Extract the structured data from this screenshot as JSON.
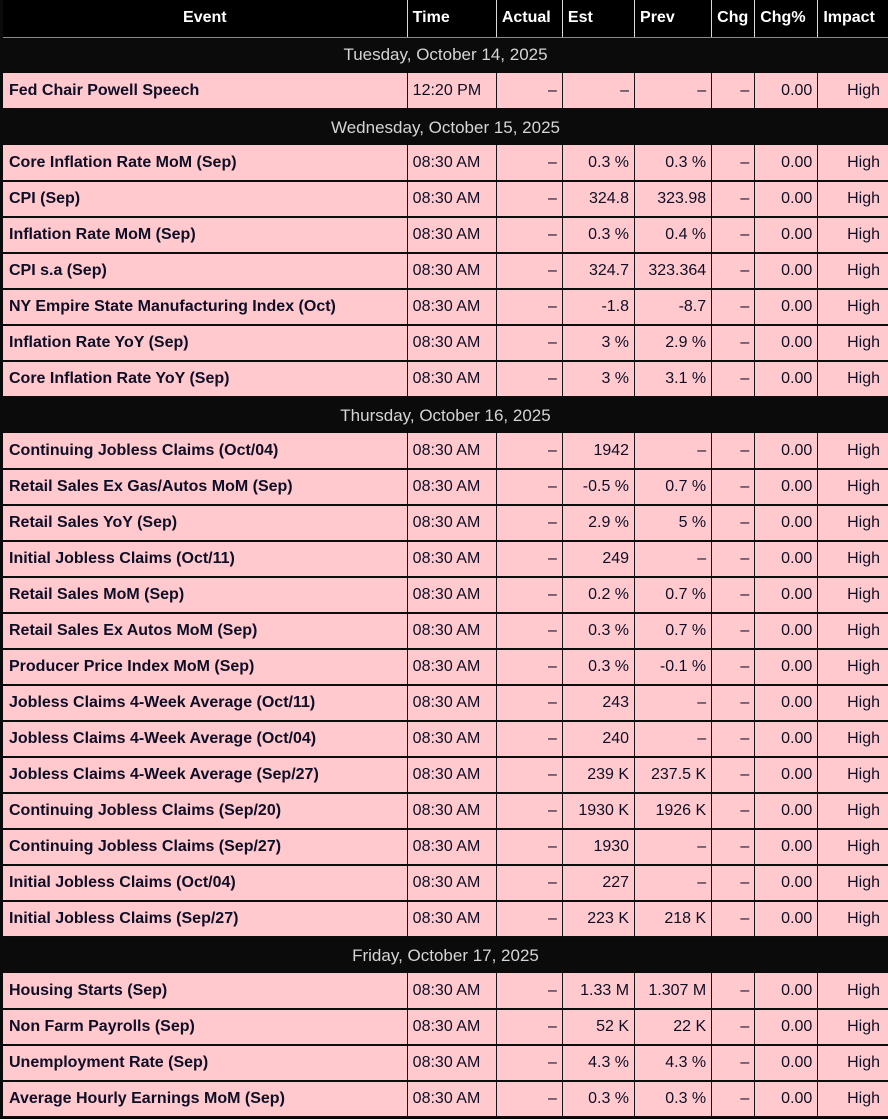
{
  "colors": {
    "row_bg": "#ffc9ce",
    "header_bg": "#000000",
    "section_bg": "#0b0b0b",
    "header_text": "#ffffff",
    "section_text": "#d5d5d5",
    "row_text": "#0e0e26"
  },
  "header": {
    "columns": [
      {
        "key": "event",
        "label": "Event"
      },
      {
        "key": "time",
        "label": "Time"
      },
      {
        "key": "actual",
        "label": "Actual"
      },
      {
        "key": "est",
        "label": "Est"
      },
      {
        "key": "prev",
        "label": "Prev"
      },
      {
        "key": "chg",
        "label": "Chg"
      },
      {
        "key": "chg_pct",
        "label": "Chg%"
      },
      {
        "key": "impact",
        "label": "Impact"
      }
    ]
  },
  "calendar": {
    "sections": [
      {
        "date": "Tuesday, October 14, 2025",
        "rows": [
          {
            "event": "Fed Chair Powell Speech",
            "time": "12:20 PM",
            "actual": "–",
            "est": "–",
            "prev": "–",
            "chg": "–",
            "chg_pct": "0.00",
            "impact": "High"
          }
        ]
      },
      {
        "date": "Wednesday, October 15, 2025",
        "rows": [
          {
            "event": "Core Inflation Rate MoM (Sep)",
            "time": "08:30 AM",
            "actual": "–",
            "est": "0.3 %",
            "prev": "0.3 %",
            "chg": "–",
            "chg_pct": "0.00",
            "impact": "High"
          },
          {
            "event": "CPI (Sep)",
            "time": "08:30 AM",
            "actual": "–",
            "est": "324.8",
            "prev": "323.98",
            "chg": "–",
            "chg_pct": "0.00",
            "impact": "High"
          },
          {
            "event": "Inflation Rate MoM (Sep)",
            "time": "08:30 AM",
            "actual": "–",
            "est": "0.3 %",
            "prev": "0.4 %",
            "chg": "–",
            "chg_pct": "0.00",
            "impact": "High"
          },
          {
            "event": "CPI s.a (Sep)",
            "time": "08:30 AM",
            "actual": "–",
            "est": "324.7",
            "prev": "323.364",
            "chg": "–",
            "chg_pct": "0.00",
            "impact": "High"
          },
          {
            "event": "NY Empire State Manufacturing Index (Oct)",
            "time": "08:30 AM",
            "actual": "–",
            "est": "-1.8",
            "prev": "-8.7",
            "chg": "–",
            "chg_pct": "0.00",
            "impact": "High"
          },
          {
            "event": "Inflation Rate YoY (Sep)",
            "time": "08:30 AM",
            "actual": "–",
            "est": "3 %",
            "prev": "2.9 %",
            "chg": "–",
            "chg_pct": "0.00",
            "impact": "High"
          },
          {
            "event": "Core Inflation Rate YoY (Sep)",
            "time": "08:30 AM",
            "actual": "–",
            "est": "3 %",
            "prev": "3.1 %",
            "chg": "–",
            "chg_pct": "0.00",
            "impact": "High"
          }
        ]
      },
      {
        "date": "Thursday, October 16, 2025",
        "rows": [
          {
            "event": "Continuing Jobless Claims (Oct/04)",
            "time": "08:30 AM",
            "actual": "–",
            "est": "1942",
            "prev": "–",
            "chg": "–",
            "chg_pct": "0.00",
            "impact": "High"
          },
          {
            "event": "Retail Sales Ex Gas/Autos MoM (Sep)",
            "time": "08:30 AM",
            "actual": "–",
            "est": "-0.5 %",
            "prev": "0.7 %",
            "chg": "–",
            "chg_pct": "0.00",
            "impact": "High"
          },
          {
            "event": "Retail Sales YoY (Sep)",
            "time": "08:30 AM",
            "actual": "–",
            "est": "2.9 %",
            "prev": "5 %",
            "chg": "–",
            "chg_pct": "0.00",
            "impact": "High"
          },
          {
            "event": "Initial Jobless Claims (Oct/11)",
            "time": "08:30 AM",
            "actual": "–",
            "est": "249",
            "prev": "–",
            "chg": "–",
            "chg_pct": "0.00",
            "impact": "High"
          },
          {
            "event": "Retail Sales MoM (Sep)",
            "time": "08:30 AM",
            "actual": "–",
            "est": "0.2 %",
            "prev": "0.7 %",
            "chg": "–",
            "chg_pct": "0.00",
            "impact": "High"
          },
          {
            "event": "Retail Sales Ex Autos MoM (Sep)",
            "time": "08:30 AM",
            "actual": "–",
            "est": "0.3 %",
            "prev": "0.7 %",
            "chg": "–",
            "chg_pct": "0.00",
            "impact": "High"
          },
          {
            "event": "Producer Price Index MoM (Sep)",
            "time": "08:30 AM",
            "actual": "–",
            "est": "0.3 %",
            "prev": "-0.1 %",
            "chg": "–",
            "chg_pct": "0.00",
            "impact": "High"
          },
          {
            "event": "Jobless Claims 4-Week Average (Oct/11)",
            "time": "08:30 AM",
            "actual": "–",
            "est": "243",
            "prev": "–",
            "chg": "–",
            "chg_pct": "0.00",
            "impact": "High"
          },
          {
            "event": "Jobless Claims 4-Week Average (Oct/04)",
            "time": "08:30 AM",
            "actual": "–",
            "est": "240",
            "prev": "–",
            "chg": "–",
            "chg_pct": "0.00",
            "impact": "High"
          },
          {
            "event": "Jobless Claims 4-Week Average (Sep/27)",
            "time": "08:30 AM",
            "actual": "–",
            "est": "239 K",
            "prev": "237.5 K",
            "chg": "–",
            "chg_pct": "0.00",
            "impact": "High"
          },
          {
            "event": "Continuing Jobless Claims (Sep/20)",
            "time": "08:30 AM",
            "actual": "–",
            "est": "1930 K",
            "prev": "1926 K",
            "chg": "–",
            "chg_pct": "0.00",
            "impact": "High"
          },
          {
            "event": "Continuing Jobless Claims (Sep/27)",
            "time": "08:30 AM",
            "actual": "–",
            "est": "1930",
            "prev": "–",
            "chg": "–",
            "chg_pct": "0.00",
            "impact": "High"
          },
          {
            "event": "Initial Jobless Claims (Oct/04)",
            "time": "08:30 AM",
            "actual": "–",
            "est": "227",
            "prev": "–",
            "chg": "–",
            "chg_pct": "0.00",
            "impact": "High"
          },
          {
            "event": "Initial Jobless Claims (Sep/27)",
            "time": "08:30 AM",
            "actual": "–",
            "est": "223 K",
            "prev": "218 K",
            "chg": "–",
            "chg_pct": "0.00",
            "impact": "High"
          }
        ]
      },
      {
        "date": "Friday, October 17, 2025",
        "rows": [
          {
            "event": "Housing Starts (Sep)",
            "time": "08:30 AM",
            "actual": "–",
            "est": "1.33 M",
            "prev": "1.307 M",
            "chg": "–",
            "chg_pct": "0.00",
            "impact": "High"
          },
          {
            "event": "Non Farm Payrolls (Sep)",
            "time": "08:30 AM",
            "actual": "–",
            "est": "52 K",
            "prev": "22 K",
            "chg": "–",
            "chg_pct": "0.00",
            "impact": "High"
          },
          {
            "event": "Unemployment Rate (Sep)",
            "time": "08:30 AM",
            "actual": "–",
            "est": "4.3 %",
            "prev": "4.3 %",
            "chg": "–",
            "chg_pct": "0.00",
            "impact": "High"
          },
          {
            "event": "Average Hourly Earnings MoM (Sep)",
            "time": "08:30 AM",
            "actual": "–",
            "est": "0.3 %",
            "prev": "0.3 %",
            "chg": "–",
            "chg_pct": "0.00",
            "impact": "High"
          }
        ]
      }
    ]
  }
}
